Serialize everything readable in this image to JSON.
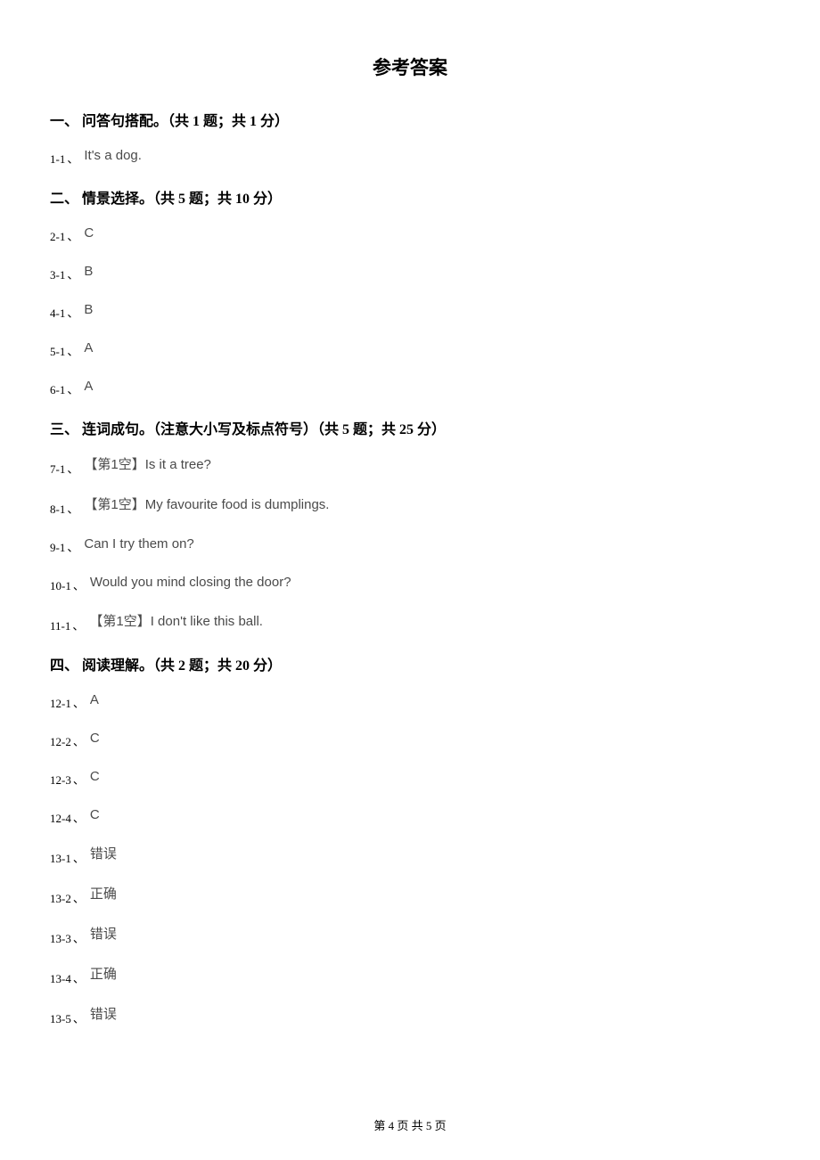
{
  "title": "参考答案",
  "sections": [
    {
      "header": "一、 问答句搭配。（共 1 题；共 1 分）",
      "items": [
        {
          "num": "1-1",
          "val": "It's a dog."
        }
      ]
    },
    {
      "header": "二、 情景选择。（共 5 题；共 10 分）",
      "items": [
        {
          "num": "2-1",
          "val": "C"
        },
        {
          "num": "3-1",
          "val": "B"
        },
        {
          "num": "4-1",
          "val": "B"
        },
        {
          "num": "5-1",
          "val": "A"
        },
        {
          "num": "6-1",
          "val": "A"
        }
      ]
    },
    {
      "header": "三、 连词成句。（注意大小写及标点符号）（共 5 题；共 25 分）",
      "items": [
        {
          "num": "7-1",
          "val": "【第1空】Is it a tree?"
        },
        {
          "num": "8-1",
          "val": "【第1空】My favourite food is dumplings."
        },
        {
          "num": "9-1",
          "val": "Can I try them on?"
        },
        {
          "num": "10-1",
          "val": "Would you mind closing the door?"
        },
        {
          "num": "11-1",
          "val": "【第1空】I don't like this ball."
        }
      ]
    },
    {
      "header": "四、 阅读理解。（共 2 题；共 20 分）",
      "items": [
        {
          "num": "12-1",
          "val": "A"
        },
        {
          "num": "12-2",
          "val": "C"
        },
        {
          "num": "12-3",
          "val": "C"
        },
        {
          "num": "12-4",
          "val": "C"
        },
        {
          "num": "13-1",
          "val": "错误"
        },
        {
          "num": "13-2",
          "val": "正确"
        },
        {
          "num": "13-3",
          "val": "错误"
        },
        {
          "num": "13-4",
          "val": "正确"
        },
        {
          "num": "13-5",
          "val": "错误"
        }
      ]
    }
  ],
  "footer": "第 4 页 共 5 页"
}
